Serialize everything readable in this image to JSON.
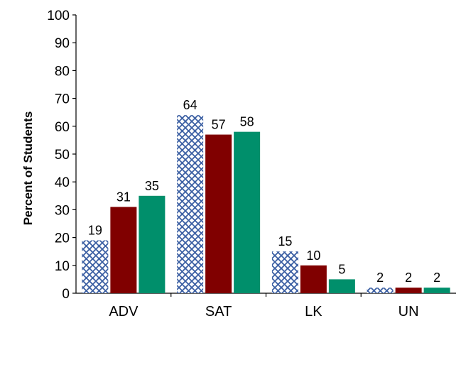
{
  "chart_data": {
    "type": "bar",
    "title": "",
    "xlabel": "",
    "ylabel": "Percent of Students",
    "ylim": [
      0,
      100
    ],
    "yticks": [
      0,
      10,
      20,
      30,
      40,
      50,
      60,
      70,
      80,
      90,
      100
    ],
    "grid": false,
    "legend": "none",
    "categories": [
      "ADV",
      "SAT",
      "LK",
      "UN"
    ],
    "series": [
      {
        "values": [
          19,
          64,
          15,
          2
        ],
        "color": "#3b5fa3",
        "pattern": "crosshatch"
      },
      {
        "values": [
          31,
          57,
          10,
          2
        ],
        "color": "#800000"
      },
      {
        "values": [
          35,
          58,
          5,
          2
        ],
        "color": "#008f6b"
      }
    ]
  }
}
